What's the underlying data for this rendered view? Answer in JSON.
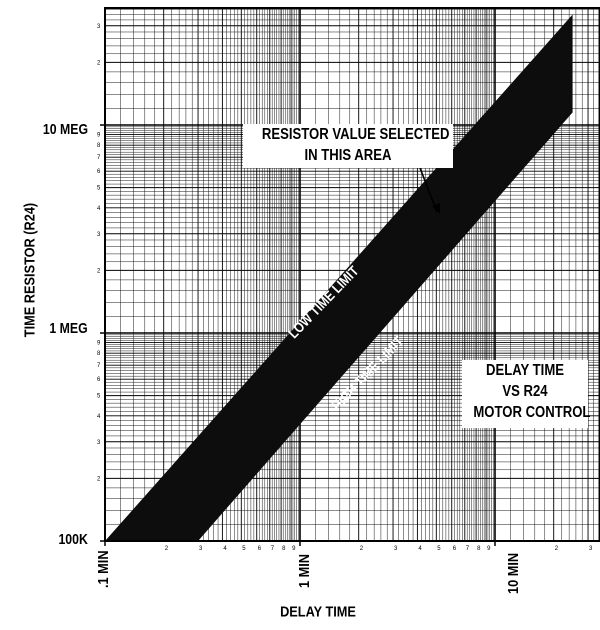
{
  "chart_data": {
    "type": "area",
    "title": "DELAY TIME VS R24 MOTOR CONTROL",
    "title_lines": [
      "DELAY TIME",
      "VS R24",
      "MOTOR CONTROL"
    ],
    "xlabel": "DELAY TIME",
    "ylabel": "TIME RESISTOR (R24)",
    "x_scale": "log",
    "y_scale": "log",
    "xlim": [
      0.1,
      25
    ],
    "ylim": [
      100000,
      35000000
    ],
    "x_tick_labels": [
      {
        "value": 0.1,
        "label": ".1 MIN"
      },
      {
        "value": 1,
        "label": "1 MIN"
      },
      {
        "value": 10,
        "label": "10 MIN"
      }
    ],
    "y_tick_labels": [
      {
        "value": 100000,
        "label": "100K"
      },
      {
        "value": 1000000,
        "label": "1 MEG"
      },
      {
        "value": 10000000,
        "label": "10 MEG"
      }
    ],
    "grid": true,
    "annotation": [
      "RESISTOR VALUE SELECTED",
      "IN THIS AREA"
    ],
    "series": [
      {
        "name": "LOW TIME LIMIT",
        "x": [
          0.1,
          25
        ],
        "y": [
          100000,
          34000000
        ]
      },
      {
        "name": "HIGH TIME LIMIT",
        "x": [
          0.3,
          25
        ],
        "y": [
          100000,
          11500000
        ]
      }
    ]
  }
}
